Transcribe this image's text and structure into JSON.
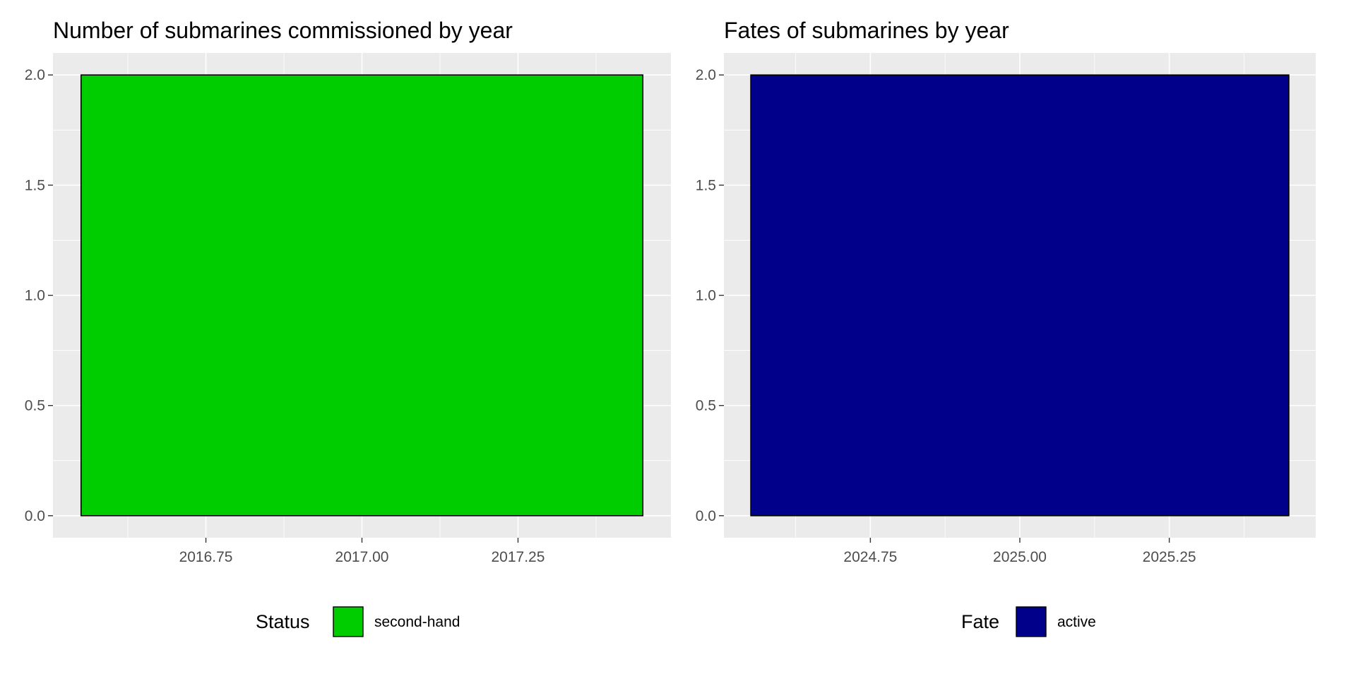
{
  "chart_data": [
    {
      "type": "bar",
      "title": "Number of submarines commissioned by year",
      "xlabel": "",
      "ylabel": "",
      "x": [
        2017.0
      ],
      "values": [
        2
      ],
      "bar_width": 0.9,
      "xlim": [
        2016.505,
        2017.495
      ],
      "ylim": [
        -0.1,
        2.1
      ],
      "x_ticks": [
        2016.75,
        2017.0,
        2017.25
      ],
      "x_tick_labels": [
        "2016.75",
        "2017.00",
        "2017.25"
      ],
      "y_ticks": [
        0,
        0.5,
        1,
        1.5,
        2
      ],
      "y_tick_labels": [
        "0.0",
        "0.5",
        "1.0",
        "1.5",
        "2.0"
      ],
      "grid": true,
      "legend": {
        "position": "bottom",
        "title": "Status",
        "entries": [
          {
            "label": "second-hand",
            "color": "#00CD00"
          }
        ]
      }
    },
    {
      "type": "bar",
      "title": "Fates of submarines by year",
      "xlabel": "",
      "ylabel": "",
      "x": [
        2025.0
      ],
      "values": [
        2
      ],
      "bar_width": 0.9,
      "xlim": [
        2024.505,
        2025.495
      ],
      "ylim": [
        -0.1,
        2.1
      ],
      "x_ticks": [
        2024.75,
        2025.0,
        2025.25
      ],
      "x_tick_labels": [
        "2024.75",
        "2025.00",
        "2025.25"
      ],
      "y_ticks": [
        0,
        0.5,
        1,
        1.5,
        2
      ],
      "y_tick_labels": [
        "0.0",
        "0.5",
        "1.0",
        "1.5",
        "2.0"
      ],
      "grid": true,
      "legend": {
        "position": "bottom",
        "title": "Fate",
        "entries": [
          {
            "label": "active",
            "color": "#00008B"
          }
        ]
      }
    }
  ]
}
